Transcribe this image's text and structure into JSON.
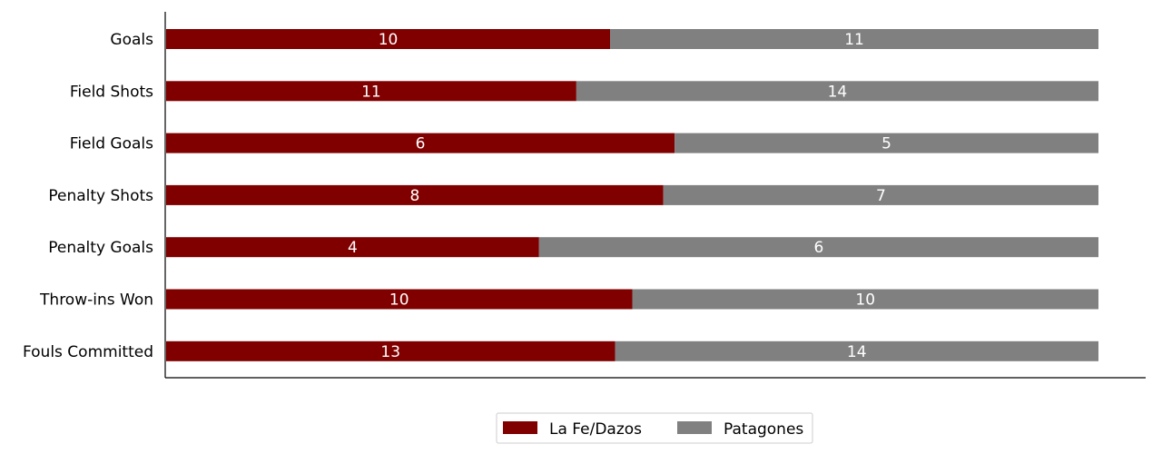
{
  "chart_data": {
    "type": "bar",
    "orientation": "horizontal",
    "stacked": true,
    "normalized": true,
    "categories": [
      "Goals",
      "Field Shots",
      "Field Goals",
      "Penalty Shots",
      "Penalty Goals",
      "Throw-ins Won",
      "Fouls Committed"
    ],
    "series": [
      {
        "name": "La Fe/Dazos",
        "color": "#800000",
        "values": [
          10,
          11,
          6,
          8,
          4,
          10,
          13
        ]
      },
      {
        "name": "Patagones",
        "color": "#808080",
        "values": [
          11,
          14,
          5,
          7,
          6,
          10,
          14
        ]
      }
    ],
    "title": "",
    "xlabel": "",
    "ylabel": "",
    "grid": false,
    "legend_position": "bottom-center"
  }
}
